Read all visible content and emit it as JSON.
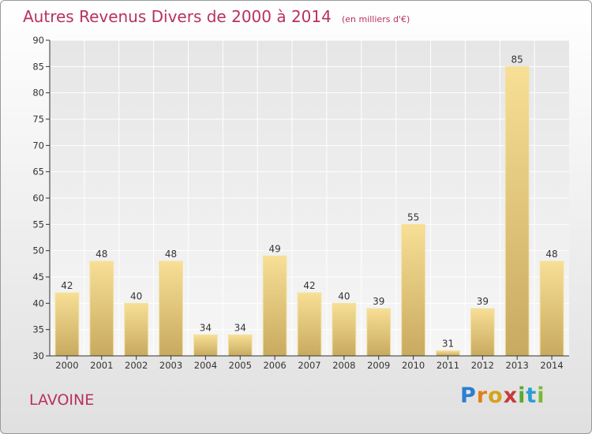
{
  "header": {
    "title": "Autres Revenus Divers de 2000 à 2014",
    "unit": "(en milliers d'€)"
  },
  "footer": {
    "commune": "LAVOINE",
    "logo_text": "Proxiti"
  },
  "colors": {
    "title": "#b8325c",
    "bar_light": "#f7df95",
    "bar_dark": "#c8aa60",
    "grid": "#ffffff"
  },
  "chart_data": {
    "type": "bar",
    "title": "Autres Revenus Divers de 2000 à 2014",
    "subtitle": "(en milliers d'€)",
    "xlabel": "",
    "ylabel": "",
    "categories": [
      "2000",
      "2001",
      "2002",
      "2003",
      "2004",
      "2005",
      "2006",
      "2007",
      "2008",
      "2009",
      "2010",
      "2011",
      "2012",
      "2013",
      "2014"
    ],
    "values": [
      42,
      48,
      40,
      48,
      34,
      34,
      49,
      42,
      40,
      39,
      55,
      31,
      39,
      85,
      48
    ],
    "ylim": [
      30,
      90
    ],
    "yticks": [
      30,
      35,
      40,
      45,
      50,
      55,
      60,
      65,
      70,
      75,
      80,
      85,
      90
    ],
    "grid": true,
    "data_labels": true
  }
}
